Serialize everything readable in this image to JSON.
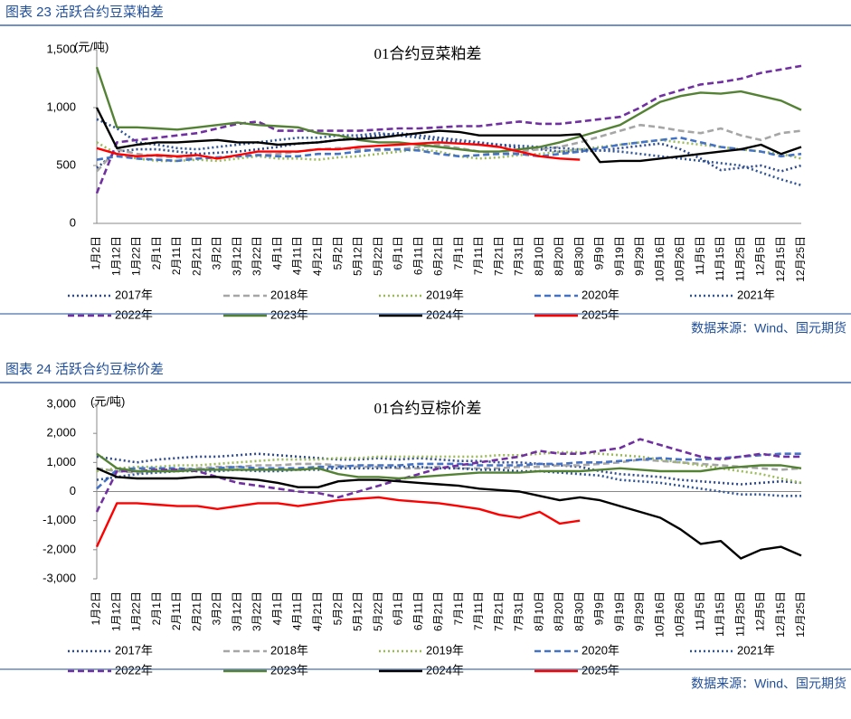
{
  "chart_data": [
    {
      "type": "line",
      "caption": "图表 23 活跃合约豆菜粕差",
      "title": "01合约豆菜粕差",
      "y_unit": "(元/吨)",
      "source": "数据来源：Wind、国元期货",
      "categories": [
        "1月2日",
        "1月12日",
        "1月22日",
        "2月1日",
        "2月11日",
        "2月21日",
        "3月2日",
        "3月12日",
        "3月22日",
        "4月1日",
        "4月11日",
        "4月21日",
        "5月2日",
        "5月12日",
        "5月22日",
        "6月1日",
        "6月11日",
        "6月21日",
        "7月1日",
        "7月11日",
        "7月21日",
        "7月31日",
        "8月10日",
        "8月20日",
        "8月30日",
        "9月9日",
        "9月19日",
        "9月29日",
        "10月16日",
        "10月26日",
        "11月5日",
        "11月15日",
        "11月25日",
        "12月5日",
        "12月15日",
        "12月25日"
      ],
      "ylim": [
        0,
        1500
      ],
      "yticks": [
        0,
        500,
        {
          "value": 1000,
          "label": "1,000"
        },
        {
          "value": 1500,
          "label": "1,500"
        }
      ],
      "series": [
        {
          "name": "2017年",
          "color": "#2e4a8c",
          "dash": "dot",
          "values": [
            480,
            620,
            640,
            640,
            620,
            600,
            610,
            620,
            640,
            660,
            690,
            700,
            720,
            740,
            760,
            780,
            760,
            740,
            720,
            700,
            680,
            650,
            640,
            620,
            620,
            630,
            650,
            670,
            690,
            640,
            560,
            460,
            480,
            500,
            450,
            500
          ]
        },
        {
          "name": "2018年",
          "color": "#a6a6a6",
          "dash": "dash",
          "values": [
            450,
            640,
            600,
            580,
            570,
            560,
            570,
            580,
            590,
            600,
            620,
            640,
            650,
            640,
            630,
            640,
            660,
            680,
            650,
            620,
            600,
            620,
            640,
            660,
            700,
            750,
            800,
            850,
            830,
            800,
            780,
            820,
            760,
            720,
            780,
            800
          ]
        },
        {
          "name": "2019年",
          "color": "#9bbb59",
          "dash": "dot",
          "values": [
            700,
            600,
            560,
            540,
            540,
            550,
            540,
            560,
            580,
            560,
            560,
            550,
            570,
            580,
            600,
            620,
            640,
            620,
            580,
            560,
            570,
            590,
            600,
            620,
            640,
            660,
            680,
            700,
            720,
            700,
            680,
            660,
            640,
            620,
            600,
            560
          ]
        },
        {
          "name": "2020年",
          "color": "#4472c4",
          "dash": "dash",
          "values": [
            550,
            580,
            560,
            550,
            540,
            560,
            570,
            580,
            590,
            580,
            580,
            600,
            600,
            620,
            640,
            640,
            630,
            600,
            580,
            590,
            600,
            600,
            580,
            600,
            620,
            650,
            680,
            700,
            720,
            740,
            700,
            660,
            640,
            620,
            580,
            600
          ]
        },
        {
          "name": "2021年",
          "color": "#2f5597",
          "dash": "dot",
          "values": [
            900,
            820,
            700,
            680,
            650,
            640,
            660,
            680,
            700,
            720,
            740,
            740,
            760,
            760,
            780,
            760,
            740,
            720,
            700,
            690,
            680,
            670,
            660,
            650,
            640,
            630,
            620,
            600,
            580,
            560,
            540,
            520,
            500,
            440,
            380,
            330
          ]
        },
        {
          "name": "2022年",
          "color": "#7030a0",
          "dash": "dash",
          "values": [
            260,
            700,
            720,
            740,
            760,
            780,
            820,
            860,
            880,
            800,
            800,
            800,
            800,
            800,
            810,
            820,
            820,
            830,
            840,
            840,
            860,
            880,
            860,
            860,
            880,
            900,
            920,
            1000,
            1100,
            1150,
            1200,
            1220,
            1250,
            1300,
            1330,
            1360
          ]
        },
        {
          "name": "2023年",
          "color": "#548235",
          "dash": "solid",
          "values": [
            1350,
            830,
            830,
            820,
            810,
            830,
            850,
            870,
            850,
            840,
            830,
            780,
            760,
            720,
            700,
            700,
            680,
            660,
            640,
            620,
            620,
            640,
            660,
            700,
            750,
            800,
            850,
            950,
            1050,
            1100,
            1130,
            1120,
            1140,
            1100,
            1060,
            980
          ]
        },
        {
          "name": "2024年",
          "color": "#000000",
          "dash": "solid",
          "values": [
            1000,
            650,
            680,
            700,
            700,
            710,
            720,
            700,
            700,
            680,
            690,
            700,
            720,
            730,
            740,
            760,
            780,
            800,
            790,
            760,
            760,
            760,
            760,
            760,
            770,
            530,
            540,
            540,
            560,
            580,
            600,
            620,
            640,
            680,
            600,
            660
          ]
        },
        {
          "name": "2025年",
          "color": "#ff0000",
          "dash": "solid",
          "values": [
            650,
            600,
            580,
            590,
            580,
            590,
            560,
            590,
            620,
            620,
            620,
            640,
            640,
            660,
            670,
            680,
            690,
            700,
            690,
            680,
            660,
            620,
            580,
            560,
            550,
            null,
            null,
            null,
            null,
            null,
            null,
            null,
            null,
            null,
            null,
            null
          ]
        }
      ]
    },
    {
      "type": "line",
      "caption": "图表 24 活跃合约豆棕价差",
      "title": "01合约豆棕价差",
      "y_unit": "(元/吨)",
      "source": "数据来源：Wind、国元期货",
      "categories": [
        "1月2日",
        "1月12日",
        "1月22日",
        "2月1日",
        "2月11日",
        "2月21日",
        "3月2日",
        "3月12日",
        "3月22日",
        "4月1日",
        "4月11日",
        "4月21日",
        "5月2日",
        "5月12日",
        "5月22日",
        "6月1日",
        "6月11日",
        "6月21日",
        "7月1日",
        "7月11日",
        "7月21日",
        "7月31日",
        "8月10日",
        "8月20日",
        "8月30日",
        "9月9日",
        "9月19日",
        "9月29日",
        "10月16日",
        "10月26日",
        "11月5日",
        "11月15日",
        "11月25日",
        "12月5日",
        "12月15日",
        "12月25日"
      ],
      "ylim": [
        -3000,
        3000
      ],
      "yticks": [
        {
          "value": -3000,
          "label": "-3,000"
        },
        {
          "value": -2000,
          "label": "-2,000"
        },
        {
          "value": -1000,
          "label": "-1,000"
        },
        0,
        {
          "value": 1000,
          "label": "1,000"
        },
        {
          "value": 2000,
          "label": "2,000"
        },
        {
          "value": 3000,
          "label": "3,000"
        }
      ],
      "series": [
        {
          "name": "2017年",
          "color": "#2e4a8c",
          "dash": "dot",
          "values": [
            1200,
            1100,
            1000,
            1100,
            1150,
            1200,
            1200,
            1250,
            1300,
            1250,
            1200,
            1150,
            1100,
            1100,
            1150,
            1100,
            1150,
            1100,
            1050,
            1050,
            1000,
            1000,
            950,
            900,
            850,
            700,
            600,
            550,
            500,
            400,
            350,
            300,
            250,
            300,
            350,
            300
          ]
        },
        {
          "name": "2018年",
          "color": "#a6a6a6",
          "dash": "dash",
          "values": [
            800,
            700,
            650,
            700,
            750,
            800,
            850,
            850,
            900,
            900,
            950,
            950,
            900,
            850,
            850,
            800,
            800,
            850,
            800,
            800,
            800,
            850,
            850,
            900,
            900,
            950,
            1000,
            1100,
            1050,
            1000,
            950,
            900,
            850,
            800,
            750,
            800
          ]
        },
        {
          "name": "2019年",
          "color": "#9bbb59",
          "dash": "dot",
          "values": [
            700,
            800,
            850,
            850,
            900,
            900,
            950,
            1000,
            1050,
            1100,
            1100,
            1100,
            1150,
            1150,
            1200,
            1200,
            1200,
            1200,
            1200,
            1200,
            1250,
            1250,
            1300,
            1350,
            1350,
            1300,
            1250,
            1200,
            1100,
            1000,
            900,
            800,
            700,
            600,
            450,
            300
          ]
        },
        {
          "name": "2020年",
          "color": "#4472c4",
          "dash": "dash",
          "values": [
            100,
            750,
            800,
            800,
            800,
            750,
            800,
            850,
            800,
            800,
            800,
            850,
            850,
            900,
            900,
            900,
            950,
            950,
            950,
            900,
            900,
            900,
            950,
            950,
            1000,
            1000,
            1050,
            1100,
            1150,
            1100,
            1100,
            1150,
            1200,
            1250,
            1300,
            1300
          ]
        },
        {
          "name": "2021年",
          "color": "#2f5597",
          "dash": "dot",
          "values": [
            400,
            500,
            600,
            650,
            700,
            700,
            700,
            750,
            700,
            700,
            750,
            750,
            800,
            800,
            800,
            850,
            850,
            800,
            800,
            750,
            750,
            700,
            700,
            650,
            600,
            550,
            400,
            350,
            300,
            200,
            100,
            0,
            -100,
            -100,
            -150,
            -150
          ]
        },
        {
          "name": "2022年",
          "color": "#7030a0",
          "dash": "dash",
          "values": [
            -700,
            700,
            700,
            750,
            750,
            700,
            500,
            300,
            200,
            100,
            0,
            -50,
            -200,
            0,
            200,
            400,
            600,
            800,
            900,
            1000,
            1100,
            1200,
            1400,
            1300,
            1300,
            1400,
            1500,
            1800,
            1600,
            1400,
            1200,
            1100,
            1200,
            1300,
            1200,
            1200
          ]
        },
        {
          "name": "2023年",
          "color": "#548235",
          "dash": "solid",
          "values": [
            1300,
            800,
            700,
            700,
            700,
            750,
            750,
            750,
            750,
            750,
            750,
            800,
            600,
            500,
            500,
            450,
            500,
            550,
            600,
            650,
            650,
            650,
            700,
            700,
            700,
            750,
            800,
            750,
            700,
            700,
            700,
            800,
            850,
            900,
            900,
            800
          ]
        },
        {
          "name": "2024年",
          "color": "#000000",
          "dash": "solid",
          "values": [
            800,
            500,
            450,
            450,
            450,
            500,
            500,
            450,
            400,
            300,
            150,
            150,
            350,
            400,
            400,
            350,
            300,
            250,
            200,
            100,
            50,
            0,
            -150,
            -300,
            -200,
            -300,
            -500,
            -700,
            -900,
            -1300,
            -1800,
            -1700,
            -2300,
            -2000,
            -1900,
            -2200
          ]
        },
        {
          "name": "2025年",
          "color": "#ff0000",
          "dash": "solid",
          "values": [
            -1900,
            -400,
            -400,
            -450,
            -500,
            -500,
            -600,
            -500,
            -400,
            -400,
            -500,
            -400,
            -300,
            -250,
            -200,
            -300,
            -350,
            -400,
            -500,
            -600,
            -800,
            -900,
            -700,
            -1100,
            -1000,
            null,
            null,
            null,
            null,
            null,
            null,
            null,
            null,
            null,
            null,
            null
          ]
        }
      ]
    }
  ]
}
